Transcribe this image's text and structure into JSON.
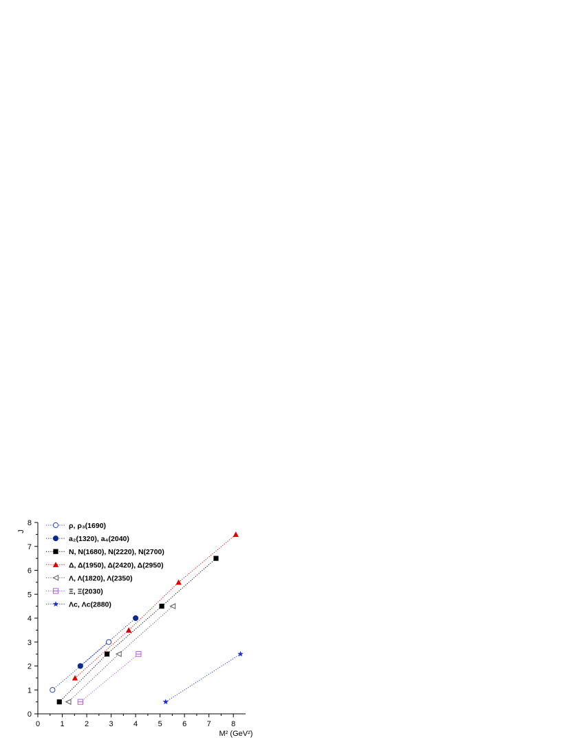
{
  "chart_data": {
    "type": "scatter",
    "xlabel": "M² (GeV²)",
    "ylabel": "J",
    "xlim": [
      0,
      8.5
    ],
    "ylim": [
      0,
      8
    ],
    "xticks": [
      0,
      1,
      2,
      3,
      4,
      5,
      6,
      7,
      8
    ],
    "yticks": [
      0,
      1,
      2,
      3,
      4,
      5,
      6,
      7,
      8
    ],
    "grid": false,
    "legend_position": "top-left",
    "series": [
      {
        "name": "ρ, ρ₃(1690)",
        "color": "#1f3fbf",
        "marker": "open-circle",
        "x": [
          0.6,
          2.9
        ],
        "y": [
          1,
          3
        ]
      },
      {
        "name": "a₂(1320), a₄(2040)",
        "color": "#0b2a8f",
        "marker": "filled-circle",
        "x": [
          1.74,
          4.0
        ],
        "y": [
          2,
          4
        ]
      },
      {
        "name": "N, N(1680), N(2220), N(2700)",
        "color": "#000000",
        "marker": "filled-square",
        "x": [
          0.88,
          2.83,
          5.07,
          7.29
        ],
        "y": [
          0.5,
          2.5,
          4.5,
          6.5
        ]
      },
      {
        "name": "Δ, Δ(1950), Δ(2420), Δ(2950)",
        "color": "#e00000",
        "marker": "filled-triangle",
        "x": [
          1.52,
          3.72,
          5.76,
          8.1
        ],
        "y": [
          1.5,
          3.5,
          5.5,
          7.5
        ]
      },
      {
        "name": "Λ, Λ(1820), Λ(2350)",
        "color": "#555555",
        "marker": "open-left-triangle",
        "x": [
          1.25,
          3.31,
          5.52
        ],
        "y": [
          0.5,
          2.5,
          4.5
        ]
      },
      {
        "name": "Ξ, Ξ(2030)",
        "color": "#b05ad8",
        "marker": "open-square-bar",
        "x": [
          1.74,
          4.12
        ],
        "y": [
          0.5,
          2.5
        ]
      },
      {
        "name": "Λc, Λc(2880)",
        "color": "#1530e0",
        "marker": "star",
        "x": [
          5.23,
          8.29
        ],
        "y": [
          0.5,
          2.5
        ]
      }
    ]
  }
}
